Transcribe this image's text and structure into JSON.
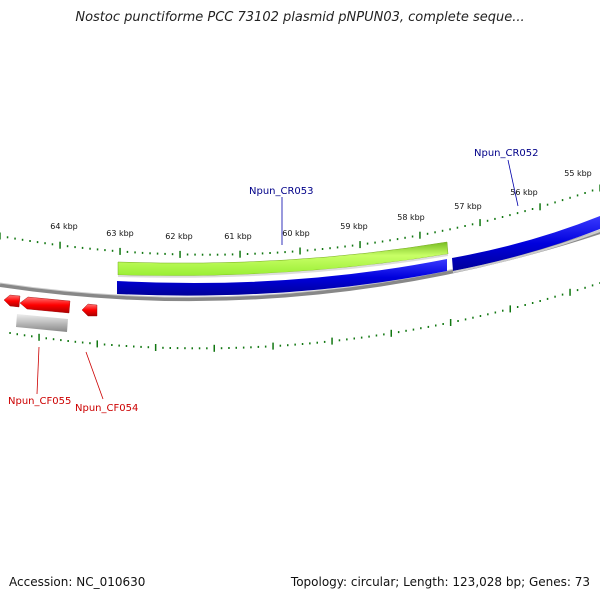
{
  "title": "Nostoc punctiforme PCC 73102 plasmid pNPUN03, complete seque...",
  "footer": {
    "accession": "Accession: NC_010630",
    "summary": "Topology: circular; Length: 123,028 bp; Genes: 73"
  },
  "colors": {
    "forward_gene": "#0000dd",
    "feature": "#99ee33",
    "reverse_gene": "#ff0000",
    "pseudo": "#bbbbbb",
    "backbone": "#888888",
    "ticks": "#117711",
    "label_forward": "#000088",
    "label_reverse": "#cc0000"
  },
  "ticks": [
    {
      "label": "64 kbp"
    },
    {
      "label": "63 kbp"
    },
    {
      "label": "62 kbp"
    },
    {
      "label": "61 kbp"
    },
    {
      "label": "60 kbp"
    },
    {
      "label": "59 kbp"
    },
    {
      "label": "58 kbp"
    },
    {
      "label": "57 kbp"
    },
    {
      "label": "56 kbp"
    },
    {
      "label": "55 kbp"
    }
  ],
  "gene_labels": [
    {
      "text": "Npun_CR053",
      "strand": "forward"
    },
    {
      "text": "Npun_CR052",
      "strand": "forward"
    },
    {
      "text": "Npun_CF055",
      "strand": "reverse"
    },
    {
      "text": "Npun_CF054",
      "strand": "reverse"
    }
  ]
}
